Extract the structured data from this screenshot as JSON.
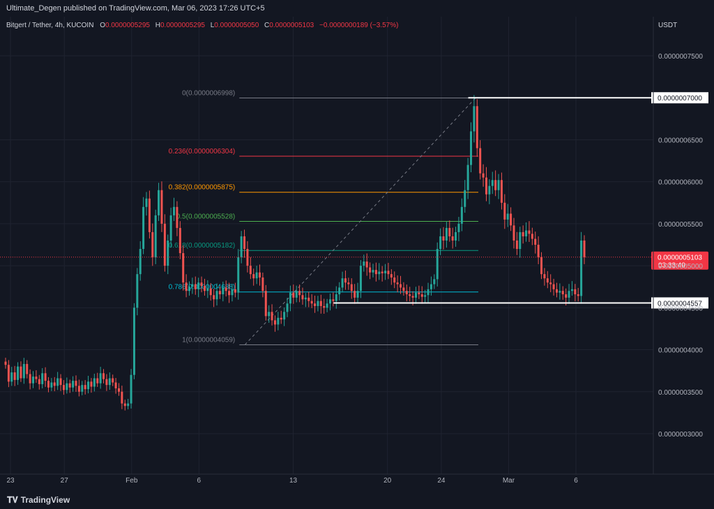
{
  "header": {
    "publisher_line": "Ultimate_Degen published on TradingView.com, Mar 06, 2023 17:26 UTC+5"
  },
  "legend": {
    "symbol": "Bitgert / Tether, 4h, KUCOIN",
    "o_label": "O",
    "o_value": "0.0000005295",
    "h_label": "H",
    "h_value": "0.0000005295",
    "l_label": "L",
    "l_value": "0.0000005050",
    "c_label": "C",
    "c_value": "0.0000005103",
    "change": "−0.0000000189 (−3.57%)"
  },
  "footer": {
    "brand": "TradingView",
    "brand_icon": "tradingview-logo-icon"
  },
  "colors": {
    "background": "#131722",
    "grid": "#1f2330",
    "up": "#26a69a",
    "down": "#ef5350",
    "fib_0": "#787b86",
    "fib_236": "#f23645",
    "fib_382": "#ff9800",
    "fib_500": "#4caf50",
    "fib_618": "#089981",
    "fib_786": "#00bcd4",
    "fib_1": "#787b86",
    "current_price": "#f23645"
  },
  "chart_data": {
    "type": "candlestick",
    "symbol": "Bitgert / Tether",
    "interval": "4h",
    "exchange": "KUCOIN",
    "currency_label": "USDT",
    "x_tick_labels": [
      "23",
      "27",
      "Feb",
      "6",
      "13",
      "20",
      "24",
      "Mar",
      "6"
    ],
    "y_tick_labels": [
      "0.0000007500",
      "0.0000006500",
      "0.0000006000",
      "0.0000005500",
      "0.0000005000",
      "0.0000004500",
      "0.0000004000",
      "0.0000003500",
      "0.0000003000"
    ],
    "y_ticks": [
      7.5e-07,
      6.5e-07,
      6e-07,
      5.5e-07,
      5e-07,
      4.5e-07,
      4e-07,
      3.5e-07,
      3e-07
    ],
    "ylim": [
      2.6e-07,
      8e-07
    ],
    "x_range": [
      "2023-01-22",
      "2023-03-08"
    ],
    "candles_approx_closes": [
      3.82e-07,
      3.62e-07,
      3.73e-07,
      3.64e-07,
      3.8e-07,
      3.66e-07,
      3.83e-07,
      3.71e-07,
      3.6e-07,
      3.68e-07,
      3.65e-07,
      3.59e-07,
      3.72e-07,
      3.63e-07,
      3.55e-07,
      3.61e-07,
      3.57e-07,
      3.66e-07,
      3.58e-07,
      3.52e-07,
      3.6e-07,
      3.55e-07,
      3.63e-07,
      3.57e-07,
      3.5e-07,
      3.58e-07,
      3.53e-07,
      3.62e-07,
      3.56e-07,
      3.66e-07,
      3.6e-07,
      3.72e-07,
      3.65e-07,
      3.58e-07,
      3.66e-07,
      3.61e-07,
      3.54e-07,
      3.5e-07,
      3.36e-07,
      3.33e-07,
      3.36e-07,
      3.7e-07,
      4.5e-07,
      4.9e-07,
      5.2e-07,
      5.7e-07,
      5.8e-07,
      5.4e-07,
      5.1e-07,
      5.6e-07,
      5.9e-07,
      5.5e-07,
      5e-07,
      5.3e-07,
      5.6e-07,
      5.7e-07,
      5.45e-07,
      5.15e-07,
      4.8e-07,
      4.7e-07,
      4.75e-07,
      4.78e-07,
      4.72e-07,
      4.8e-07,
      4.76e-07,
      4.7e-07,
      4.73e-07,
      4.65e-07,
      4.6e-07,
      4.7e-07,
      4.66e-07,
      4.74e-07,
      4.7e-07,
      4.65e-07,
      4.72e-07,
      4.68e-07,
      5.1e-07,
      5.35e-07,
      5.2e-07,
      5e-07,
      4.9e-07,
      4.85e-07,
      4.92e-07,
      4.86e-07,
      4.7e-07,
      4.4e-07,
      4.45e-07,
      4.35e-07,
      4.3e-07,
      4.38e-07,
      4.36e-07,
      4.45e-07,
      4.55e-07,
      4.68e-07,
      4.62e-07,
      4.7e-07,
      4.65e-07,
      4.6e-07,
      4.62e-07,
      4.58e-07,
      4.55e-07,
      4.52e-07,
      4.58e-07,
      4.52e-07,
      4.5e-07,
      4.55e-07,
      4.6e-07,
      4.58e-07,
      4.66e-07,
      4.74e-07,
      4.85e-07,
      4.8e-07,
      4.78e-07,
      4.7e-07,
      4.62e-07,
      4.7e-07,
      5e-07,
      5.05e-07,
      4.98e-07,
      4.92e-07,
      4.95e-07,
      4.9e-07,
      4.93e-07,
      4.91e-07,
      4.94e-07,
      4.9e-07,
      4.86e-07,
      4.8e-07,
      4.78e-07,
      4.74e-07,
      4.7e-07,
      4.66e-07,
      4.64e-07,
      4.62e-07,
      4.68e-07,
      4.66e-07,
      4.63e-07,
      4.65e-07,
      4.72e-07,
      4.78e-07,
      4.84e-07,
      5.2e-07,
      5.35e-07,
      5.3e-07,
      5.45e-07,
      5.35e-07,
      5.3e-07,
      5.4e-07,
      5.5e-07,
      5.7e-07,
      5.9e-07,
      6.2e-07,
      6.6e-07,
      6.9e-07,
      6.4e-07,
      6.1e-07,
      6.05e-07,
      5.85e-07,
      5.95e-07,
      6.02e-07,
      5.9e-07,
      6.02e-07,
      5.75e-07,
      5.55e-07,
      5.62e-07,
      5.48e-07,
      5.3e-07,
      5.2e-07,
      5.4e-07,
      5.35e-07,
      5.42e-07,
      5.38e-07,
      5.32e-07,
      5.25e-07,
      5.1e-07,
      4.9e-07,
      4.85e-07,
      4.8e-07,
      4.78e-07,
      4.72e-07,
      4.68e-07,
      4.7e-07,
      4.66e-07,
      4.62e-07,
      4.7e-07,
      4.72e-07,
      4.66e-07,
      4.64e-07,
      5.3e-07,
      5.1e-07
    ],
    "fibonacci": {
      "levels": [
        {
          "ratio": "0",
          "label": "0(0.0000006998)",
          "price": 6.998e-07,
          "color": "#787b86"
        },
        {
          "ratio": "0.236",
          "label": "0.236(0.0000006304)",
          "price": 6.304e-07,
          "color": "#f23645"
        },
        {
          "ratio": "0.382",
          "label": "0.382(0.0000005875)",
          "price": 5.875e-07,
          "color": "#ff9800"
        },
        {
          "ratio": "0.5",
          "label": "0.5(0.0000005528)",
          "price": 5.528e-07,
          "color": "#4caf50"
        },
        {
          "ratio": "0.618",
          "label": "0.618(0.0000005182)",
          "price": 5.182e-07,
          "color": "#089981"
        },
        {
          "ratio": "0.786",
          "label": "0.786(0.0000004688)",
          "price": 4.688e-07,
          "color": "#00bcd4"
        },
        {
          "ratio": "1",
          "label": "1(0.0000004059)",
          "price": 4.059e-07,
          "color": "#787b86"
        }
      ],
      "start_date": "2023-02-09",
      "end_date": "2023-02-26"
    },
    "horizontal_levels": [
      {
        "price": 7e-07,
        "label": "0.0000007000",
        "start_date": "2023-02-26"
      },
      {
        "price": 4.557e-07,
        "label": "0.0000004557",
        "start_date": "2023-02-16"
      }
    ],
    "current_price": {
      "price": 5.103e-07,
      "label": "0.0000005103",
      "countdown": "03:33:40"
    }
  }
}
